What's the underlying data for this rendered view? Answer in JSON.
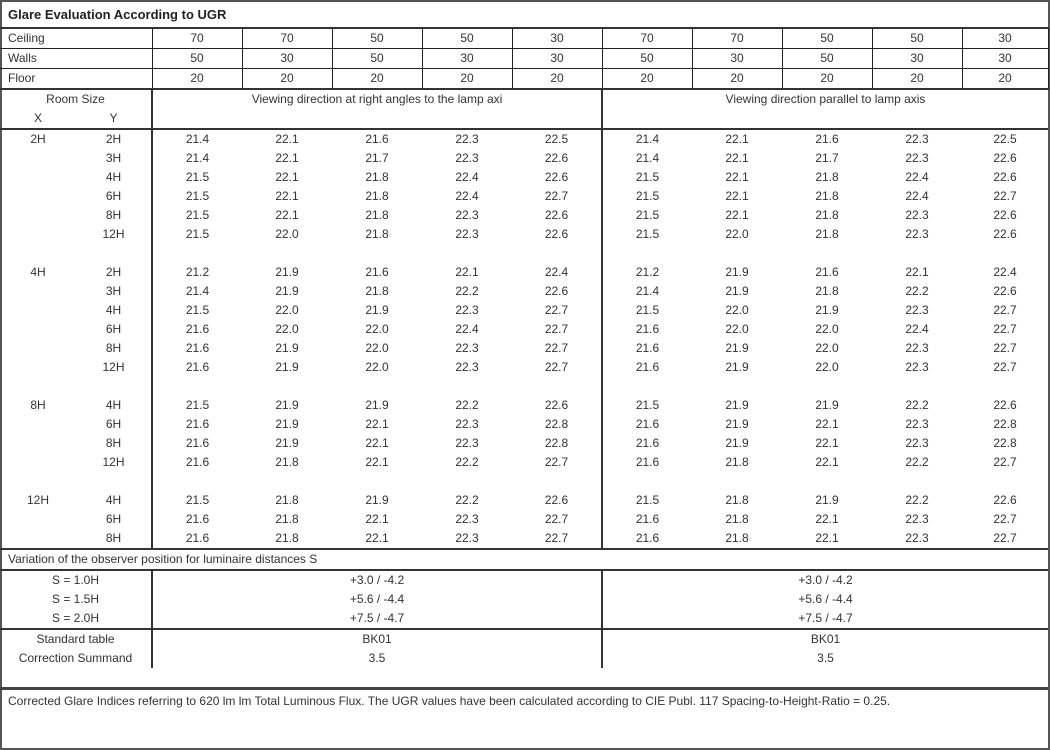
{
  "title": "Glare Evaluation According to UGR",
  "reflectances": {
    "ceiling": {
      "label": "Ceiling",
      "values": [
        "70",
        "70",
        "50",
        "50",
        "30",
        "70",
        "70",
        "50",
        "50",
        "30"
      ]
    },
    "walls": {
      "label": "Walls",
      "values": [
        "50",
        "30",
        "50",
        "30",
        "30",
        "50",
        "30",
        "50",
        "30",
        "30"
      ]
    },
    "floor": {
      "label": "Floor",
      "values": [
        "20",
        "20",
        "20",
        "20",
        "20",
        "20",
        "20",
        "20",
        "20",
        "20"
      ]
    }
  },
  "room_size_label": "Room Size",
  "x_label": "X",
  "y_label": "Y",
  "perp_heading": "Viewing direction at right angles to the lamp axi",
  "para_heading": "Viewing direction parallel to lamp axis",
  "groups": [
    {
      "x": "2H",
      "rows": [
        {
          "y": "2H",
          "perp": [
            "21.4",
            "22.1",
            "21.6",
            "22.3",
            "22.5"
          ],
          "para": [
            "21.4",
            "22.1",
            "21.6",
            "22.3",
            "22.5"
          ]
        },
        {
          "y": "3H",
          "perp": [
            "21.4",
            "22.1",
            "21.7",
            "22.3",
            "22.6"
          ],
          "para": [
            "21.4",
            "22.1",
            "21.7",
            "22.3",
            "22.6"
          ]
        },
        {
          "y": "4H",
          "perp": [
            "21.5",
            "22.1",
            "21.8",
            "22.4",
            "22.6"
          ],
          "para": [
            "21.5",
            "22.1",
            "21.8",
            "22.4",
            "22.6"
          ]
        },
        {
          "y": "6H",
          "perp": [
            "21.5",
            "22.1",
            "21.8",
            "22.4",
            "22.7"
          ],
          "para": [
            "21.5",
            "22.1",
            "21.8",
            "22.4",
            "22.7"
          ]
        },
        {
          "y": "8H",
          "perp": [
            "21.5",
            "22.1",
            "21.8",
            "22.3",
            "22.6"
          ],
          "para": [
            "21.5",
            "22.1",
            "21.8",
            "22.3",
            "22.6"
          ]
        },
        {
          "y": "12H",
          "perp": [
            "21.5",
            "22.0",
            "21.8",
            "22.3",
            "22.6"
          ],
          "para": [
            "21.5",
            "22.0",
            "21.8",
            "22.3",
            "22.6"
          ]
        }
      ]
    },
    {
      "x": "4H",
      "rows": [
        {
          "y": "2H",
          "perp": [
            "21.2",
            "21.9",
            "21.6",
            "22.1",
            "22.4"
          ],
          "para": [
            "21.2",
            "21.9",
            "21.6",
            "22.1",
            "22.4"
          ]
        },
        {
          "y": "3H",
          "perp": [
            "21.4",
            "21.9",
            "21.8",
            "22.2",
            "22.6"
          ],
          "para": [
            "21.4",
            "21.9",
            "21.8",
            "22.2",
            "22.6"
          ]
        },
        {
          "y": "4H",
          "perp": [
            "21.5",
            "22.0",
            "21.9",
            "22.3",
            "22.7"
          ],
          "para": [
            "21.5",
            "22.0",
            "21.9",
            "22.3",
            "22.7"
          ]
        },
        {
          "y": "6H",
          "perp": [
            "21.6",
            "22.0",
            "22.0",
            "22.4",
            "22.7"
          ],
          "para": [
            "21.6",
            "22.0",
            "22.0",
            "22.4",
            "22.7"
          ]
        },
        {
          "y": "8H",
          "perp": [
            "21.6",
            "21.9",
            "22.0",
            "22.3",
            "22.7"
          ],
          "para": [
            "21.6",
            "21.9",
            "22.0",
            "22.3",
            "22.7"
          ]
        },
        {
          "y": "12H",
          "perp": [
            "21.6",
            "21.9",
            "22.0",
            "22.3",
            "22.7"
          ],
          "para": [
            "21.6",
            "21.9",
            "22.0",
            "22.3",
            "22.7"
          ]
        }
      ]
    },
    {
      "x": "8H",
      "rows": [
        {
          "y": "4H",
          "perp": [
            "21.5",
            "21.9",
            "21.9",
            "22.2",
            "22.6"
          ],
          "para": [
            "21.5",
            "21.9",
            "21.9",
            "22.2",
            "22.6"
          ]
        },
        {
          "y": "6H",
          "perp": [
            "21.6",
            "21.9",
            "22.1",
            "22.3",
            "22.8"
          ],
          "para": [
            "21.6",
            "21.9",
            "22.1",
            "22.3",
            "22.8"
          ]
        },
        {
          "y": "8H",
          "perp": [
            "21.6",
            "21.9",
            "22.1",
            "22.3",
            "22.8"
          ],
          "para": [
            "21.6",
            "21.9",
            "22.1",
            "22.3",
            "22.8"
          ]
        },
        {
          "y": "12H",
          "perp": [
            "21.6",
            "21.8",
            "22.1",
            "22.2",
            "22.7"
          ],
          "para": [
            "21.6",
            "21.8",
            "22.1",
            "22.2",
            "22.7"
          ]
        }
      ]
    },
    {
      "x": "12H",
      "rows": [
        {
          "y": "4H",
          "perp": [
            "21.5",
            "21.8",
            "21.9",
            "22.2",
            "22.6"
          ],
          "para": [
            "21.5",
            "21.8",
            "21.9",
            "22.2",
            "22.6"
          ]
        },
        {
          "y": "6H",
          "perp": [
            "21.6",
            "21.8",
            "22.1",
            "22.3",
            "22.7"
          ],
          "para": [
            "21.6",
            "21.8",
            "22.1",
            "22.3",
            "22.7"
          ]
        },
        {
          "y": "8H",
          "perp": [
            "21.6",
            "21.8",
            "22.1",
            "22.3",
            "22.7"
          ],
          "para": [
            "21.6",
            "21.8",
            "22.1",
            "22.3",
            "22.7"
          ]
        }
      ]
    }
  ],
  "variation_heading": "Variation of the observer position for luminaire distances S",
  "variation": [
    {
      "label": "S = 1.0H",
      "perp": "+3.0 / -4.2",
      "para": "+3.0 / -4.2"
    },
    {
      "label": "S = 1.5H",
      "perp": "+5.6 / -4.4",
      "para": "+5.6 / -4.4"
    },
    {
      "label": "S = 2.0H",
      "perp": "+7.5 / -4.7",
      "para": "+7.5 / -4.7"
    }
  ],
  "standard_table": {
    "label": "Standard table",
    "perp": "BK01",
    "para": "BK01"
  },
  "correction": {
    "label": "Correction Summand",
    "perp": "3.5",
    "para": "3.5"
  },
  "footer": "Corrected Glare Indices referring to 620 lm lm Total Luminous Flux. The UGR values have been calculated according to CIE Publ. 117     Spacing-to-Height-Ratio = 0.25."
}
